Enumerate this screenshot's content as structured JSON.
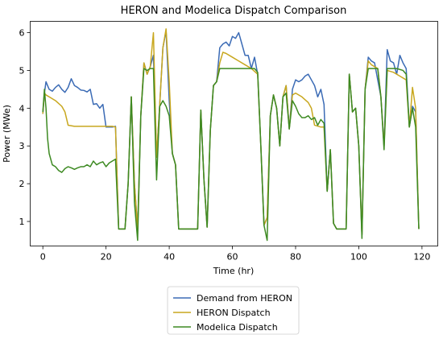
{
  "chart_data": {
    "type": "line",
    "title": "HERON and Modelica Dispatch Comparison",
    "xlabel": "Time (hr)",
    "ylabel": "Power (MWe)",
    "xlim": [
      -4,
      125
    ],
    "ylim": [
      0.35,
      6.3
    ],
    "xticks": [
      0,
      20,
      40,
      60,
      80,
      100,
      120
    ],
    "yticks": [
      1,
      2,
      3,
      4,
      5,
      6
    ],
    "grid": false,
    "legend_position": "bottom-center (outside plot)",
    "series": [
      {
        "name": "Demand from HERON",
        "color": "#3b6bb5",
        "points": [
          [
            0,
            3.85
          ],
          [
            0.5,
            4.4
          ],
          [
            1,
            4.7
          ],
          [
            2,
            4.5
          ],
          [
            3,
            4.45
          ],
          [
            4,
            4.55
          ],
          [
            5,
            4.62
          ],
          [
            6,
            4.5
          ],
          [
            7,
            4.42
          ],
          [
            8,
            4.55
          ],
          [
            9,
            4.78
          ],
          [
            10,
            4.6
          ],
          [
            11,
            4.55
          ],
          [
            12,
            4.48
          ],
          [
            13,
            4.47
          ],
          [
            14,
            4.43
          ],
          [
            15,
            4.5
          ],
          [
            16,
            4.1
          ],
          [
            17,
            4.12
          ],
          [
            18,
            4.0
          ],
          [
            19,
            4.1
          ],
          [
            20,
            3.5
          ],
          [
            21,
            3.5
          ],
          [
            22,
            3.5
          ],
          [
            23,
            3.52
          ],
          [
            24,
            0.8
          ],
          [
            25,
            0.8
          ],
          [
            26,
            0.8
          ],
          [
            27,
            2.0
          ],
          [
            28,
            4.3
          ],
          [
            29,
            2.0
          ],
          [
            30,
            0.8
          ],
          [
            31,
            3.8
          ],
          [
            32,
            5.2
          ],
          [
            33,
            4.9
          ],
          [
            34,
            5.1
          ],
          [
            35,
            5.4
          ],
          [
            36,
            2.7
          ],
          [
            37,
            4.1
          ],
          [
            38,
            5.6
          ],
          [
            39,
            6.05
          ],
          [
            40,
            4.2
          ],
          [
            41,
            2.8
          ],
          [
            42,
            2.5
          ],
          [
            43,
            0.8
          ],
          [
            44,
            0.8
          ],
          [
            46,
            0.8
          ],
          [
            48,
            0.8
          ],
          [
            49,
            0.8
          ],
          [
            50,
            3.95
          ],
          [
            51,
            2.1
          ],
          [
            52,
            0.85
          ],
          [
            53,
            3.4
          ],
          [
            54,
            4.6
          ],
          [
            55,
            4.7
          ],
          [
            56,
            5.6
          ],
          [
            57,
            5.7
          ],
          [
            58,
            5.75
          ],
          [
            59,
            5.65
          ],
          [
            60,
            5.9
          ],
          [
            61,
            5.85
          ],
          [
            62,
            6.0
          ],
          [
            63,
            5.7
          ],
          [
            64,
            5.4
          ],
          [
            65,
            5.4
          ],
          [
            66,
            5.05
          ],
          [
            67,
            5.35
          ],
          [
            68,
            4.9
          ],
          [
            69,
            3.0
          ],
          [
            70,
            0.9
          ],
          [
            71,
            1.1
          ],
          [
            72,
            3.8
          ],
          [
            73,
            4.35
          ],
          [
            74,
            4.0
          ],
          [
            75,
            3.0
          ],
          [
            76,
            4.3
          ],
          [
            77,
            4.6
          ],
          [
            78,
            3.45
          ],
          [
            79,
            4.5
          ],
          [
            80,
            4.75
          ],
          [
            81,
            4.7
          ],
          [
            82,
            4.75
          ],
          [
            83,
            4.85
          ],
          [
            84,
            4.9
          ],
          [
            85,
            4.75
          ],
          [
            86,
            4.6
          ],
          [
            87,
            4.3
          ],
          [
            88,
            4.5
          ],
          [
            89,
            4.1
          ],
          [
            90,
            1.8
          ],
          [
            91,
            2.9
          ],
          [
            92,
            0.95
          ],
          [
            93,
            0.8
          ],
          [
            94,
            0.8
          ],
          [
            95,
            0.8
          ],
          [
            96,
            0.8
          ],
          [
            97,
            4.9
          ],
          [
            98,
            3.9
          ],
          [
            99,
            4.0
          ],
          [
            100,
            3.0
          ],
          [
            101,
            0.65
          ],
          [
            102,
            4.5
          ],
          [
            103,
            5.35
          ],
          [
            104,
            5.25
          ],
          [
            105,
            5.2
          ],
          [
            106,
            4.75
          ],
          [
            107,
            4.3
          ],
          [
            108,
            3.0
          ],
          [
            109,
            5.55
          ],
          [
            110,
            5.25
          ],
          [
            111,
            5.2
          ],
          [
            112,
            4.9
          ],
          [
            113,
            5.4
          ],
          [
            114,
            5.2
          ],
          [
            115,
            5.05
          ],
          [
            116,
            3.5
          ],
          [
            117,
            4.05
          ],
          [
            118,
            3.9
          ],
          [
            119,
            0.8
          ]
        ]
      },
      {
        "name": "HERON Dispatch",
        "color": "#c8a71e",
        "points": [
          [
            0,
            3.85
          ],
          [
            0.5,
            4.4
          ],
          [
            1,
            4.35
          ],
          [
            2,
            4.3
          ],
          [
            4,
            4.2
          ],
          [
            6,
            4.05
          ],
          [
            7,
            3.9
          ],
          [
            8,
            3.55
          ],
          [
            10,
            3.52
          ],
          [
            14,
            3.52
          ],
          [
            18,
            3.52
          ],
          [
            20,
            3.52
          ],
          [
            22,
            3.52
          ],
          [
            23,
            3.5
          ],
          [
            24,
            0.8
          ],
          [
            25,
            0.8
          ],
          [
            26,
            0.8
          ],
          [
            27,
            2.0
          ],
          [
            28,
            4.3
          ],
          [
            29,
            2.0
          ],
          [
            30,
            0.8
          ],
          [
            31,
            3.8
          ],
          [
            32,
            5.2
          ],
          [
            33,
            4.9
          ],
          [
            34,
            5.1
          ],
          [
            35,
            6.0
          ],
          [
            36,
            2.7
          ],
          [
            37,
            4.1
          ],
          [
            38,
            5.6
          ],
          [
            39,
            6.1
          ],
          [
            40,
            4.7
          ],
          [
            41,
            2.8
          ],
          [
            42,
            2.5
          ],
          [
            43,
            0.8
          ],
          [
            44,
            0.8
          ],
          [
            46,
            0.8
          ],
          [
            48,
            0.8
          ],
          [
            49,
            0.8
          ],
          [
            50,
            3.95
          ],
          [
            51,
            2.1
          ],
          [
            52,
            0.85
          ],
          [
            53,
            3.4
          ],
          [
            54,
            4.6
          ],
          [
            55,
            4.7
          ],
          [
            56,
            5.2
          ],
          [
            57,
            5.48
          ],
          [
            58,
            5.45
          ],
          [
            60,
            5.35
          ],
          [
            62,
            5.25
          ],
          [
            64,
            5.15
          ],
          [
            66,
            5.05
          ],
          [
            68,
            4.9
          ],
          [
            69,
            3.0
          ],
          [
            70,
            0.9
          ],
          [
            71,
            1.1
          ],
          [
            72,
            3.8
          ],
          [
            73,
            4.35
          ],
          [
            74,
            4.0
          ],
          [
            75,
            3.0
          ],
          [
            76,
            4.3
          ],
          [
            77,
            4.6
          ],
          [
            78,
            3.45
          ],
          [
            79,
            4.35
          ],
          [
            80,
            4.4
          ],
          [
            82,
            4.3
          ],
          [
            84,
            4.15
          ],
          [
            85,
            4.0
          ],
          [
            86,
            3.55
          ],
          [
            88,
            3.5
          ],
          [
            89,
            3.5
          ],
          [
            90,
            1.8
          ],
          [
            91,
            2.9
          ],
          [
            92,
            0.95
          ],
          [
            93,
            0.8
          ],
          [
            94,
            0.8
          ],
          [
            95,
            0.8
          ],
          [
            96,
            0.8
          ],
          [
            97,
            4.9
          ],
          [
            98,
            3.9
          ],
          [
            99,
            4.0
          ],
          [
            100,
            3.0
          ],
          [
            101,
            0.65
          ],
          [
            102,
            4.5
          ],
          [
            103,
            5.25
          ],
          [
            104,
            5.15
          ],
          [
            106,
            5.05
          ],
          [
            107,
            4.3
          ],
          [
            108,
            3.0
          ],
          [
            109,
            5.0
          ],
          [
            111,
            4.95
          ],
          [
            113,
            4.85
          ],
          [
            115,
            4.75
          ],
          [
            116,
            3.5
          ],
          [
            117,
            4.55
          ],
          [
            118,
            4.0
          ],
          [
            119,
            0.8
          ]
        ]
      },
      {
        "name": "Modelica Dispatch",
        "color": "#3d8a22",
        "points": [
          [
            0,
            3.9
          ],
          [
            0.5,
            4.5
          ],
          [
            1,
            4.0
          ],
          [
            1.5,
            3.2
          ],
          [
            2,
            2.8
          ],
          [
            3,
            2.5
          ],
          [
            4,
            2.45
          ],
          [
            5,
            2.35
          ],
          [
            6,
            2.3
          ],
          [
            7,
            2.4
          ],
          [
            8,
            2.45
          ],
          [
            9,
            2.42
          ],
          [
            10,
            2.38
          ],
          [
            11,
            2.42
          ],
          [
            12,
            2.45
          ],
          [
            13,
            2.45
          ],
          [
            14,
            2.5
          ],
          [
            15,
            2.45
          ],
          [
            16,
            2.6
          ],
          [
            17,
            2.5
          ],
          [
            18,
            2.55
          ],
          [
            19,
            2.58
          ],
          [
            20,
            2.45
          ],
          [
            21,
            2.55
          ],
          [
            22,
            2.6
          ],
          [
            23,
            2.65
          ],
          [
            24,
            0.8
          ],
          [
            25,
            0.8
          ],
          [
            26,
            0.8
          ],
          [
            27,
            2.0
          ],
          [
            28,
            4.3
          ],
          [
            29,
            1.5
          ],
          [
            30,
            0.5
          ],
          [
            31,
            3.8
          ],
          [
            32,
            5.05
          ],
          [
            33,
            5.0
          ],
          [
            34,
            5.05
          ],
          [
            35,
            5.05
          ],
          [
            36,
            2.1
          ],
          [
            37,
            4.05
          ],
          [
            38,
            4.2
          ],
          [
            39,
            4.05
          ],
          [
            40,
            3.8
          ],
          [
            41,
            2.8
          ],
          [
            42,
            2.5
          ],
          [
            43,
            0.8
          ],
          [
            44,
            0.8
          ],
          [
            46,
            0.8
          ],
          [
            48,
            0.8
          ],
          [
            49,
            0.8
          ],
          [
            50,
            3.95
          ],
          [
            51,
            2.1
          ],
          [
            52,
            0.85
          ],
          [
            53,
            3.4
          ],
          [
            54,
            4.6
          ],
          [
            55,
            4.7
          ],
          [
            56,
            5.05
          ],
          [
            58,
            5.05
          ],
          [
            60,
            5.05
          ],
          [
            64,
            5.05
          ],
          [
            67,
            5.05
          ],
          [
            68,
            4.95
          ],
          [
            69,
            3.0
          ],
          [
            70,
            0.9
          ],
          [
            71,
            0.5
          ],
          [
            72,
            3.8
          ],
          [
            73,
            4.35
          ],
          [
            74,
            4.0
          ],
          [
            75,
            3.0
          ],
          [
            76,
            4.3
          ],
          [
            77,
            4.4
          ],
          [
            78,
            3.45
          ],
          [
            79,
            4.2
          ],
          [
            80,
            4.05
          ],
          [
            81,
            3.85
          ],
          [
            82,
            3.75
          ],
          [
            83,
            3.75
          ],
          [
            84,
            3.8
          ],
          [
            85,
            3.7
          ],
          [
            86,
            3.75
          ],
          [
            87,
            3.55
          ],
          [
            88,
            3.7
          ],
          [
            89,
            3.6
          ],
          [
            90,
            1.8
          ],
          [
            91,
            2.9
          ],
          [
            92,
            0.95
          ],
          [
            93,
            0.8
          ],
          [
            94,
            0.8
          ],
          [
            95,
            0.8
          ],
          [
            96,
            0.8
          ],
          [
            97,
            4.9
          ],
          [
            98,
            3.9
          ],
          [
            99,
            4.0
          ],
          [
            100,
            3.0
          ],
          [
            101,
            0.55
          ],
          [
            102,
            4.5
          ],
          [
            103,
            5.05
          ],
          [
            104,
            5.05
          ],
          [
            106,
            5.05
          ],
          [
            107,
            4.3
          ],
          [
            108,
            2.9
          ],
          [
            109,
            5.05
          ],
          [
            110,
            5.05
          ],
          [
            112,
            5.05
          ],
          [
            114,
            5.0
          ],
          [
            115,
            4.9
          ],
          [
            116,
            3.5
          ],
          [
            117,
            4.0
          ],
          [
            118,
            3.5
          ],
          [
            119,
            0.8
          ]
        ]
      }
    ]
  }
}
